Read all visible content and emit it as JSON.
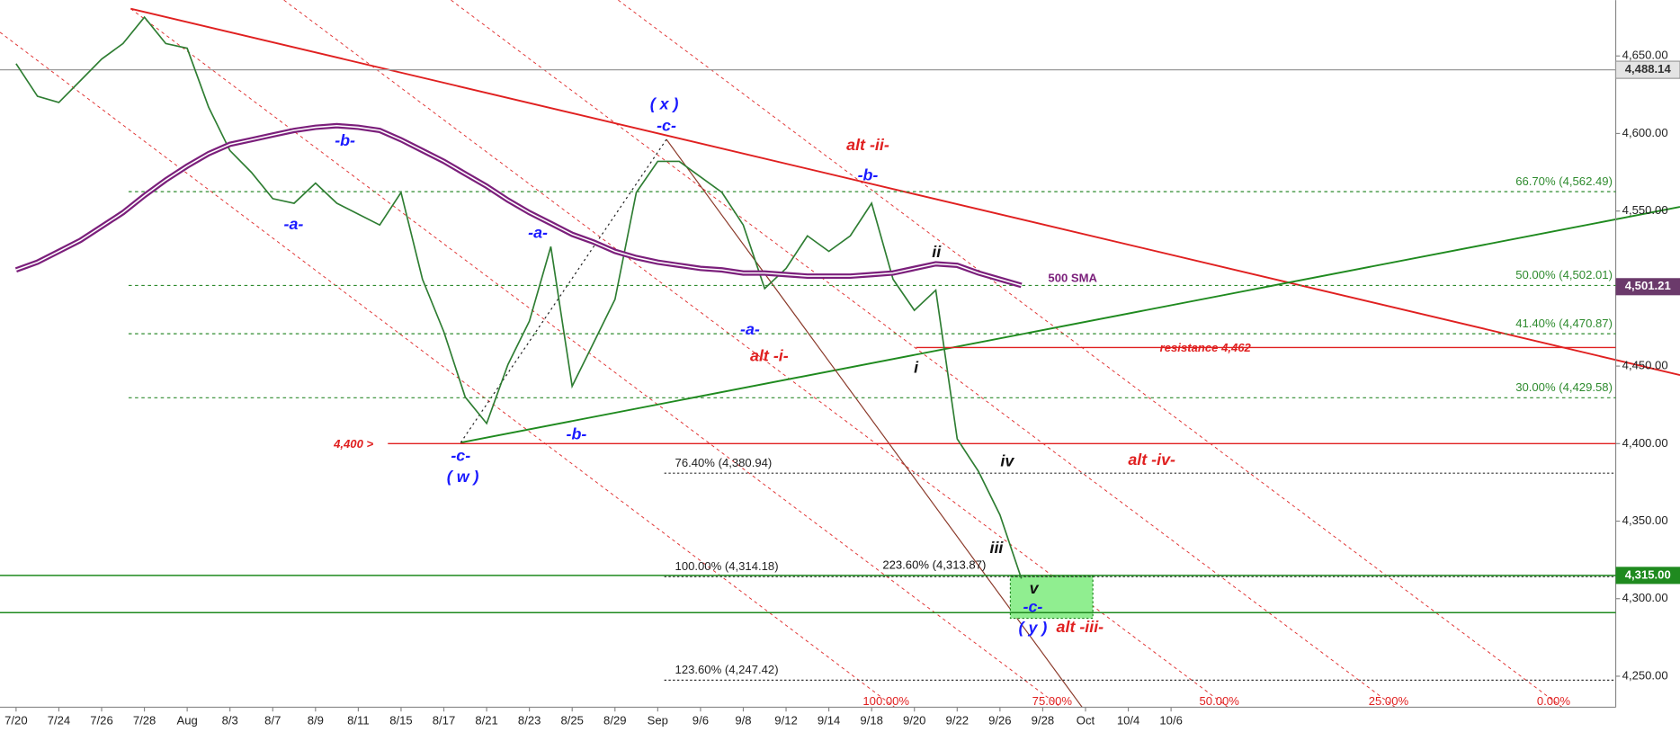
{
  "chart_data": {
    "type": "line",
    "categories": [
      "7/20",
      null,
      "7/24",
      null,
      "7/26",
      null,
      "7/28",
      null,
      "Aug",
      null,
      "8/3",
      null,
      "8/7",
      null,
      "8/9",
      null,
      "8/11",
      null,
      "8/15",
      null,
      "8/17",
      null,
      "8/21",
      null,
      "8/23",
      null,
      "8/25",
      null,
      "8/29",
      null,
      "Sep",
      null,
      "9/6",
      null,
      "9/8",
      null,
      "9/12",
      null,
      "9/14",
      null,
      "9/18",
      null,
      "9/20",
      null,
      "9/22",
      null,
      "9/26",
      null,
      "9/28",
      null,
      "Oct",
      null,
      "10/4",
      null,
      "10/6",
      null
    ],
    "series": [
      {
        "color": "#2e7d32",
        "values": [
          4645,
          4624,
          4620,
          4634,
          4648,
          4658,
          4675,
          4658,
          4655,
          4617,
          4589,
          4575,
          4558,
          4555,
          4568,
          4555,
          4548,
          4541,
          4562,
          4506,
          4472,
          4430,
          4413,
          4451,
          4479,
          4527,
          4437,
          4465,
          4493,
          4562,
          4582,
          4582,
          4572,
          4562,
          4541,
          4500,
          4513,
          4534,
          4524,
          4534,
          4555,
          4506,
          4486,
          4499,
          4403,
          4382,
          4354,
          4313,
          null,
          null,
          null,
          null,
          null,
          null,
          null,
          null
        ]
      },
      {
        "name": "500 SMA",
        "color": "#7b1f7b",
        "values": [
          4512,
          4517,
          4524,
          4531,
          4540,
          4549,
          4560,
          4570,
          4579,
          4587,
          4593,
          4596,
          4599,
          4602,
          4604,
          4605,
          4604,
          4602,
          4596,
          4589,
          4582,
          4574,
          4566,
          4557,
          4549,
          4542,
          4535,
          4530,
          4524,
          4520,
          4517,
          4515,
          4513,
          4512,
          4510,
          4510,
          4509,
          4508,
          4508,
          4508,
          4509,
          4510,
          4513,
          4516,
          4515,
          4510,
          4506,
          4502,
          null,
          null,
          null,
          null,
          null,
          null,
          null,
          null
        ]
      }
    ],
    "ylim": [
      4230,
      4686
    ],
    "yticks": [
      {
        "value": 4250,
        "label": "4,250.00"
      },
      {
        "value": 4300,
        "label": "4,300.00"
      },
      {
        "value": 4350,
        "label": "4,350.00"
      },
      {
        "value": 4400,
        "label": "4,400.00"
      },
      {
        "value": 4450,
        "label": "4,450.00"
      },
      {
        "value": 4500,
        "label": "4,500.00"
      },
      {
        "value": 4550,
        "label": "4,550.00"
      },
      {
        "value": 4600,
        "label": "4,600.00"
      },
      {
        "value": 4650,
        "label": "4,650.00"
      }
    ],
    "retracements": [
      {
        "value": 4562.49,
        "label": "66.70% (4,562.49)"
      },
      {
        "value": 4502.01,
        "label": "50.00% (4,502.01)"
      },
      {
        "value": 4470.87,
        "label": "41.40% (4,470.87)"
      },
      {
        "value": 4429.58,
        "label": "30.00% (4,429.58)"
      }
    ],
    "extensions": [
      {
        "value": 4380.94,
        "label": "76.40% (4,380.94)"
      },
      {
        "value": 4314.18,
        "label": "100.00% (4,314.18)"
      },
      {
        "value": 4247.42,
        "label": "123.60% (4,247.42)"
      }
    ],
    "lines": [
      {
        "value": 4400,
        "label": "4,400 >",
        "color": "#e02020"
      },
      {
        "value": 4462,
        "label": "resistance 4,462",
        "color": "#e02020"
      },
      {
        "value": 4315,
        "label": "4,315.00",
        "color": "#1f8a1f"
      },
      {
        "value": 4291,
        "color": "#1f8a1f"
      }
    ],
    "badges": [
      {
        "value": 4501.21,
        "label": "4,501.21",
        "color": "#6b3a6b"
      }
    ],
    "top_badge": "4,488.14",
    "annotations": [
      "( x )",
      "-c-",
      "alt -ii-",
      "-b-",
      "-b-",
      "-a-",
      "-a-",
      "ii",
      "-a-",
      "alt -i-",
      "i",
      "-b-",
      "-c-",
      "( w )",
      "iv",
      "alt -iv-",
      "iii",
      "v",
      "-c-",
      "( y )",
      "alt -iii-",
      "223.60% (4,313.87)"
    ],
    "channel_labels": [
      "100.00%",
      "75.00%",
      "50.00%",
      "25.00%",
      "0.00%"
    ]
  }
}
